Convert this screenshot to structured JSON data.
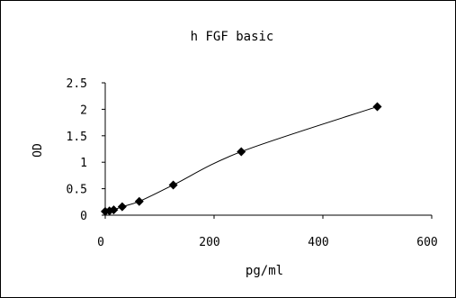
{
  "chart_data": {
    "type": "line",
    "title": "h FGF basic",
    "xlabel": "pg/ml",
    "ylabel": "OD",
    "xlim": [
      0,
      600
    ],
    "ylim": [
      0,
      2.5
    ],
    "xticks": [
      0,
      200,
      400,
      600
    ],
    "xtick_labels": [
      "0",
      "200",
      "400",
      "600"
    ],
    "yticks": [
      0,
      0.5,
      1,
      1.5,
      2,
      2.5
    ],
    "ytick_labels": [
      "0",
      "0.5",
      "1",
      "1.5",
      "2",
      "2.5"
    ],
    "grid": false,
    "legend": "none",
    "marker": "diamond",
    "series": [
      {
        "x": [
          0,
          7.8,
          15.6,
          31.2,
          62.5,
          125,
          250,
          500
        ],
        "y": [
          0.07,
          0.08,
          0.1,
          0.16,
          0.26,
          0.57,
          1.2,
          2.05
        ]
      }
    ],
    "colors": {
      "line": "#000000",
      "marker": "#000000"
    }
  }
}
